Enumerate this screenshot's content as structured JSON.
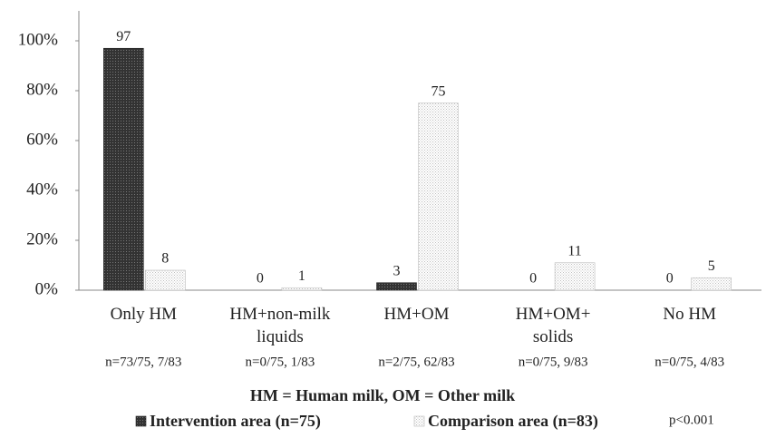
{
  "chart_data": {
    "type": "bar",
    "categories": [
      "Only HM",
      "HM+non-milk liquids",
      "HM+OM",
      "HM+OM+ solids",
      "No HM"
    ],
    "n_labels": [
      "n=73/75, 7/83",
      "n=0/75, 1/83",
      "n=2/75, 62/83",
      "n=0/75, 9/83",
      "n=0/75, 4/83"
    ],
    "series": [
      {
        "name": "Intervention area (n=75)",
        "color": "#333333",
        "values": [
          97,
          0,
          3,
          0,
          0
        ]
      },
      {
        "name": "Comparison area (n=83)",
        "color": "#bfbfbf",
        "values": [
          8,
          1,
          75,
          11,
          5
        ]
      }
    ],
    "x_label": "HM = Human milk, OM = Other milk",
    "annotation": "p<0.001",
    "ylim": [
      0,
      112
    ],
    "yticks": [
      {
        "value": 0,
        "label": "0%"
      },
      {
        "value": 20,
        "label": "20%"
      },
      {
        "value": 40,
        "label": "40%"
      },
      {
        "value": 60,
        "label": "60%"
      },
      {
        "value": 80,
        "label": "80%"
      },
      {
        "value": 100,
        "label": "100%"
      }
    ],
    "grid": false,
    "legend": "bottom"
  }
}
